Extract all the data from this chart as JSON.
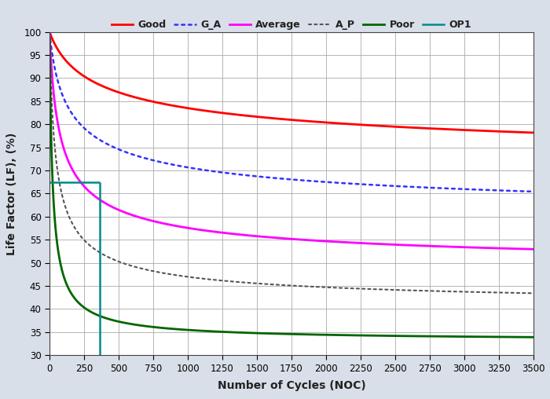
{
  "xlabel": "Number of Cycles (NOC)",
  "ylabel": "Life Factor (LF), (%)",
  "xlim": [
    0,
    3500
  ],
  "ylim": [
    30,
    100
  ],
  "xticks": [
    0,
    250,
    500,
    750,
    1000,
    1250,
    1500,
    1750,
    2000,
    2250,
    2500,
    2750,
    3000,
    3250,
    3500
  ],
  "yticks": [
    30,
    35,
    40,
    45,
    50,
    55,
    60,
    65,
    70,
    75,
    80,
    85,
    90,
    95,
    100
  ],
  "background_color": "#d9dfe8",
  "plot_bg_color": "#ffffff",
  "grid_color": "#aaaaaa",
  "curves": {
    "Good": {
      "color": "#ff0000",
      "linestyle": "-",
      "linewidth": 2.0,
      "C": 64.5,
      "k": 120,
      "n": 0.28
    },
    "G_A": {
      "color": "#3333ff",
      "linestyle": "--",
      "linewidth": 1.8,
      "C": 56.5,
      "k": 55,
      "n": 0.38
    },
    "Average": {
      "color": "#ff00ff",
      "linestyle": "-",
      "linewidth": 2.0,
      "C": 47.5,
      "k": 38,
      "n": 0.5
    },
    "A_P": {
      "color": "#555555",
      "linestyle": "--",
      "linewidth": 1.5,
      "C": 40.0,
      "k": 25,
      "n": 0.58
    },
    "Poor": {
      "color": "#006600",
      "linestyle": "-",
      "linewidth": 2.0,
      "C": 33.0,
      "k": 18,
      "n": 0.82
    }
  },
  "op1": {
    "color": "#008b8b",
    "linewidth": 1.8,
    "x_val": 365,
    "y_val": 67.5
  },
  "legend_fontsize": 9,
  "axis_label_fontsize": 10,
  "tick_fontsize": 8.5
}
